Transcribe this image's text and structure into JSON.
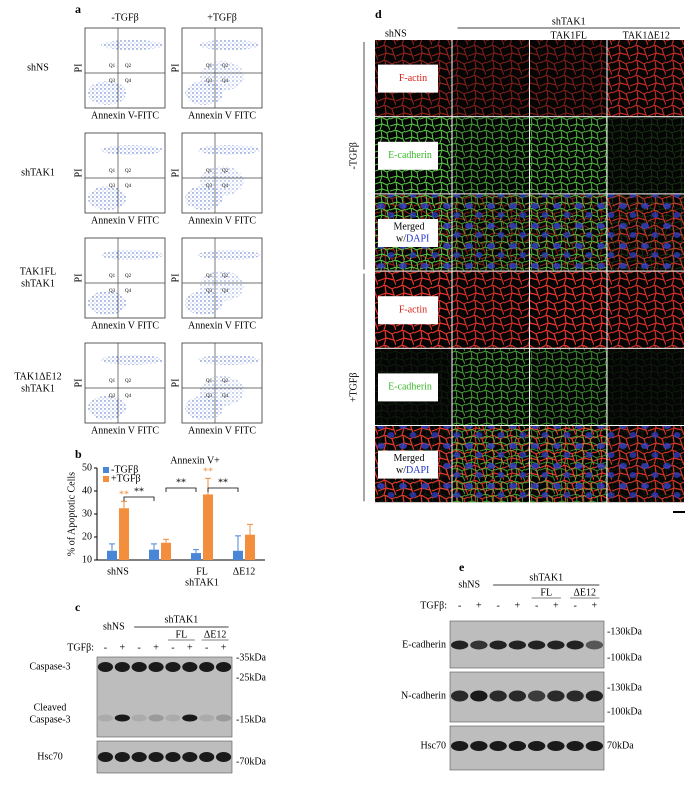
{
  "panel_labels": [
    "a",
    "b",
    "c",
    "d",
    "e"
  ],
  "panel_a": {
    "columns": [
      "-TGFβ",
      "+TGFβ"
    ],
    "rows": [
      [
        "shNS"
      ],
      [
        "shTAK1"
      ],
      [
        "TAK1FL",
        "shTAK1"
      ],
      [
        "TAK1ΔE12",
        "shTAK1"
      ]
    ],
    "plots": [
      {
        "x_label": "Annexin V-FITC",
        "y_label": "PI"
      },
      {
        "x_label": "Annexin V FITC",
        "y_label": "PI"
      },
      {
        "x_label": "Annexin V FITC",
        "y_label": "PI"
      },
      {
        "x_label": "Annexin V FITC",
        "y_label": "PI"
      },
      {
        "x_label": "Annexin V FITC",
        "y_label": "PI"
      },
      {
        "x_label": "Annexin V FITC",
        "y_label": "PI"
      },
      {
        "x_label": "Annexin V FITC",
        "y_label": "PI"
      },
      {
        "x_label": "Annexin V FITC",
        "y_label": "PI"
      }
    ],
    "quadrants": [
      "Q1",
      "Q2",
      "Q3",
      "Q4"
    ]
  },
  "chart_data": {
    "type": "bar",
    "title": "Annexin V+",
    "y_label": "% of Apoptotic Cells",
    "categories": [
      "shNS",
      null,
      "FL",
      "ΔE12"
    ],
    "group_label": "shTAK1",
    "series": [
      {
        "name": "-TGFβ",
        "color": "#4a86d8",
        "values": [
          14,
          14.5,
          13,
          14
        ],
        "errors": [
          3,
          2.5,
          1.5,
          6.5
        ]
      },
      {
        "name": "+TGFβ",
        "color": "#f28e3c",
        "values": [
          32.5,
          17.5,
          38.5,
          21
        ],
        "errors": [
          3,
          1.5,
          7,
          4.5
        ]
      }
    ],
    "ylim": [
      10,
      50
    ],
    "yticks": [
      10,
      20,
      30,
      40,
      50
    ],
    "annotations": [
      {
        "text": "**",
        "color": "#f28e3c"
      },
      {
        "text": "**",
        "color": "#f28e3c"
      },
      {
        "text": "**",
        "color": "#000000"
      },
      {
        "text": "**",
        "color": "#000000"
      },
      {
        "text": "**",
        "color": "#000000"
      }
    ]
  },
  "panel_c": {
    "groups": {
      "control": "shNS",
      "knockdown": "shTAK1",
      "rescues": [
        "FL",
        "ΔE12"
      ]
    },
    "treatment": "TGFβ:",
    "lanes": [
      "-",
      "+",
      "-",
      "+",
      "-",
      "+",
      "-",
      "+"
    ],
    "rows": [
      [
        "Caspase-3"
      ],
      [
        "Cleaved",
        "Caspase-3"
      ],
      [
        "Hsc70"
      ]
    ],
    "markers": [
      "-35kDa",
      "-25kDa",
      "-15kDa",
      "-70kDa"
    ]
  },
  "panel_d": {
    "columns": [
      "shNS",
      "TAK1FL",
      "TAK1ΔE12"
    ],
    "group": "shTAK1",
    "conditions": [
      "-TGFβ",
      "+TGFβ"
    ],
    "stains": {
      "actin": "F-actin",
      "cadherin": "E-cadherin",
      "merged": [
        "Merged",
        "w/",
        "DAPI"
      ]
    }
  },
  "panel_e": {
    "groups": {
      "control": "shNS",
      "knockdown": "shTAK1",
      "rescues": [
        "FL",
        "ΔE12"
      ]
    },
    "treatment": "TGFβ:",
    "lanes": [
      "-",
      "+",
      "-",
      "+",
      "-",
      "+",
      "-",
      "+"
    ],
    "rows": [
      "E-cadherin",
      "N-cadherin",
      "Hsc70"
    ],
    "markers": [
      "-130kDa",
      "-100kDa",
      "-130kDa",
      "-100kDa",
      "70kDa"
    ]
  }
}
